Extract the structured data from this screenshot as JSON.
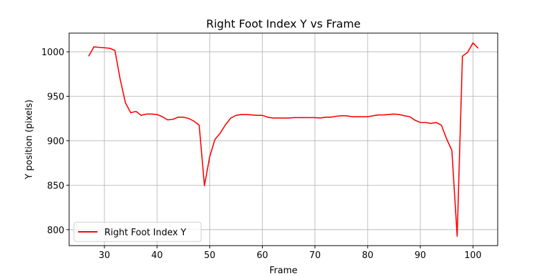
{
  "chart_data": {
    "type": "line",
    "title": "Right Foot Index Y vs Frame",
    "xlabel": "Frame",
    "ylabel": "Y position (pixels)",
    "xlim": [
      23.3,
      104.7
    ],
    "ylim": [
      782,
      1021
    ],
    "xticks": [
      30,
      40,
      50,
      60,
      70,
      80,
      90,
      100
    ],
    "yticks": [
      800,
      850,
      900,
      950,
      1000
    ],
    "grid": true,
    "legend_position": "lower-left",
    "series": [
      {
        "name": "Right Foot Index Y",
        "color": "#ff0000",
        "x": [
          27,
          28,
          29,
          30,
          31,
          32,
          33,
          34,
          35,
          36,
          37,
          38,
          39,
          40,
          41,
          42,
          43,
          44,
          45,
          46,
          47,
          48,
          49,
          50,
          51,
          52,
          53,
          54,
          55,
          56,
          57,
          58,
          59,
          60,
          61,
          62,
          63,
          64,
          65,
          66,
          67,
          68,
          69,
          70,
          71,
          72,
          73,
          74,
          75,
          76,
          77,
          78,
          79,
          80,
          81,
          82,
          83,
          84,
          85,
          86,
          87,
          88,
          89,
          90,
          91,
          92,
          93,
          94,
          95,
          96,
          97,
          98,
          99,
          100,
          101
        ],
        "values": [
          995,
          1005.5,
          1005,
          1004.5,
          1004,
          1001.5,
          969,
          942.5,
          931.5,
          933,
          928.5,
          930,
          930,
          929.5,
          927,
          923.5,
          924,
          926.5,
          926.5,
          925,
          922,
          917.5,
          849.5,
          882,
          901.5,
          908.5,
          918,
          925.5,
          928.5,
          929.5,
          929.5,
          929,
          928.5,
          928.5,
          926.5,
          925.5,
          925.5,
          925.5,
          925.5,
          926,
          926,
          926,
          926,
          926,
          925.5,
          926.5,
          926.5,
          927.5,
          928,
          928,
          927,
          927,
          927,
          927,
          928,
          929,
          929,
          929.5,
          930,
          929.5,
          928,
          927,
          923,
          920.5,
          920.5,
          919.5,
          920.5,
          917.5,
          902,
          889,
          792.5,
          995,
          999.5,
          1010,
          1004
        ]
      }
    ]
  }
}
